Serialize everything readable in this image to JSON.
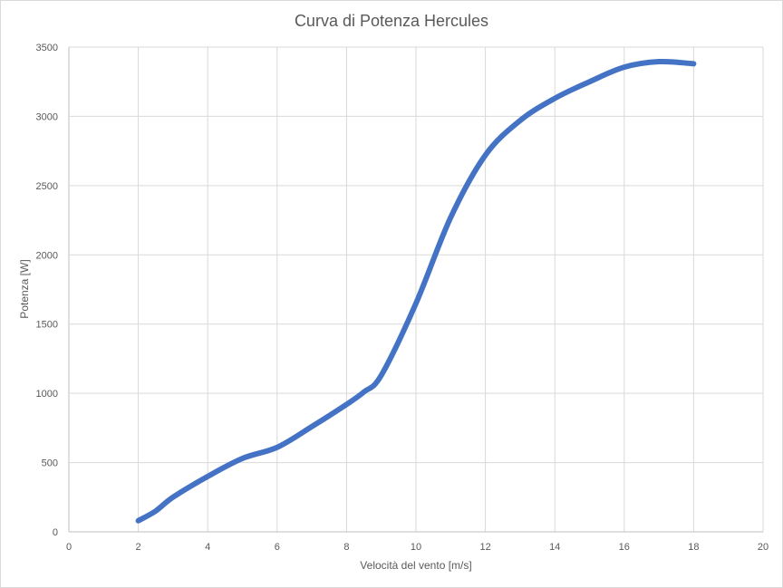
{
  "chart_data": {
    "type": "line",
    "title": "Curva di Potenza Hercules",
    "xlabel": "Velocità del vento [m/s]",
    "ylabel": "Potenza  [W]",
    "xlim": [
      0,
      20
    ],
    "ylim": [
      0,
      3500
    ],
    "x_ticks": [
      "0",
      "2",
      "4",
      "6",
      "8",
      "10",
      "12",
      "14",
      "16",
      "18",
      "20"
    ],
    "y_ticks": [
      "0",
      "500",
      "1000",
      "1500",
      "2000",
      "2500",
      "3000",
      "3500"
    ],
    "grid": true,
    "legend": "none",
    "series": [
      {
        "color": "#4472c4",
        "x": [
          2,
          2.5,
          3,
          4,
          5,
          6,
          7,
          8,
          8.5,
          9,
          10,
          11,
          12,
          13,
          14,
          15,
          16,
          17,
          18
        ],
        "y": [
          80,
          150,
          250,
          400,
          530,
          610,
          760,
          920,
          1010,
          1130,
          1650,
          2270,
          2720,
          2970,
          3130,
          3250,
          3355,
          3395,
          3380
        ]
      }
    ]
  }
}
